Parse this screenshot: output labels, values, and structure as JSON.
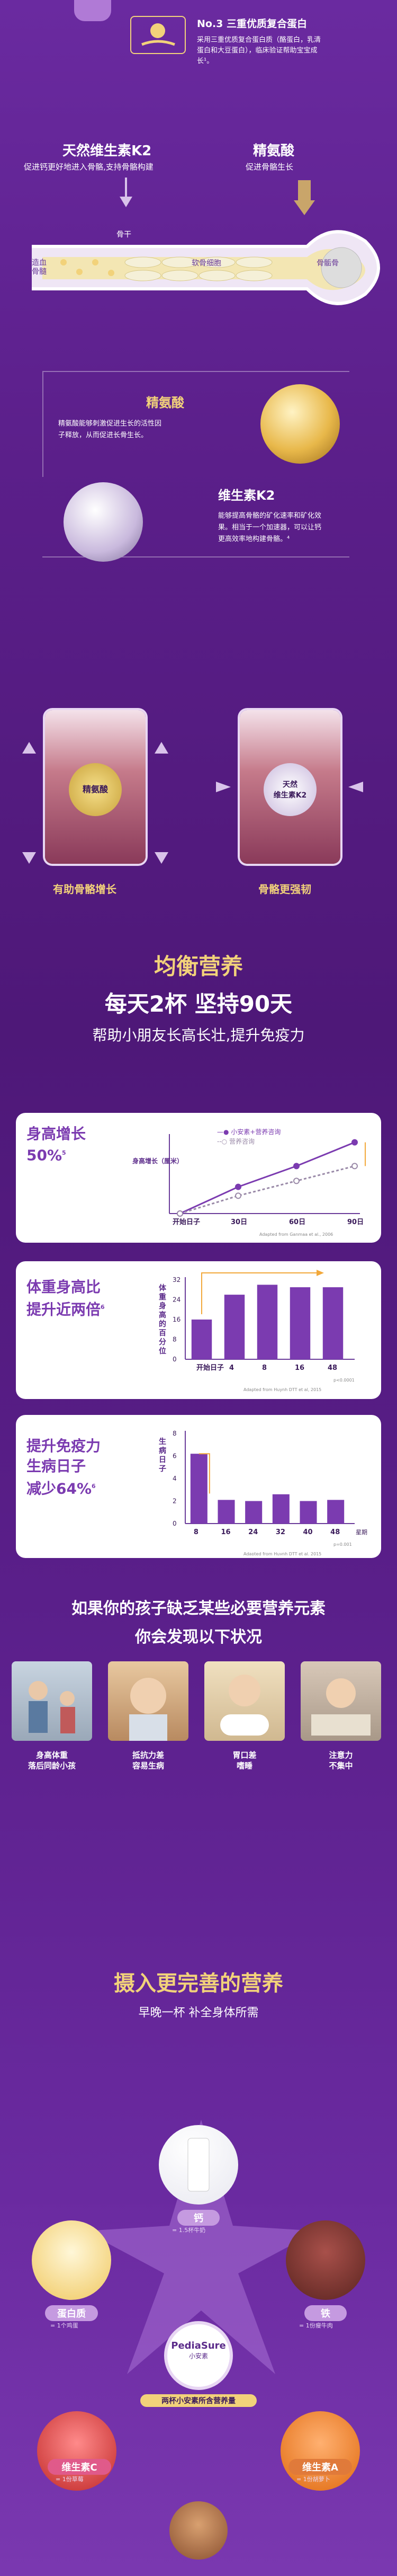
{
  "top": {
    "no3_title": "No.3 三重优质复合蛋白",
    "no3_desc_1": "采用三重优质复合蛋白质（酪蛋白，乳清",
    "no3_desc_2": "蛋白和大豆蛋白），临床验证帮助宝宝成",
    "no3_desc_3": "长¹。"
  },
  "bone": {
    "k2_title": "天然维生素K2",
    "k2_desc": "促进钙更好地进入骨骼,支持骨骼构建",
    "arg_title": "精氨酸",
    "arg_desc": "促进骨骼生长",
    "label_gugan": "骨干",
    "label_ruangu": "软骨细胞",
    "label_zaoxue": "造血\n骨髓",
    "label_guguo": "骨骺骨"
  },
  "arg_card": {
    "title": "精氨酸",
    "desc_1": "精氨酸能够刺激促进生长的活性因",
    "desc_2": "子释放，从而促进长骨生长。"
  },
  "k2_card": {
    "title": "维生素K2",
    "desc_1": "能够提高骨骼的矿化速率和矿化效",
    "desc_2": "果。相当于一个加速器，可以让钙",
    "desc_3": "更高效率地构建骨骼。⁴"
  },
  "twins": {
    "left_badge": "精氨酸",
    "right_badge_1": "天然",
    "right_badge_2": "维生素K2",
    "left_caption": "有助骨骼增长",
    "right_caption": "骨骼更强韧"
  },
  "headline": {
    "l1": "均衡营养",
    "l2": "每天2杯  坚持90天",
    "l3": "帮助小朋友长高长壮,提升免疫力"
  },
  "chart1": {
    "title_1": "身高增长",
    "title_2": "50%",
    "sup": "5",
    "ylabel": "身高增长（厘米）",
    "legend_a": "小安素+营养咨询",
    "legend_b": "营养咨询",
    "source": "Adapted from Ganmaa et al., 2006"
  },
  "chart2": {
    "title_1": "体重身高比",
    "title_2": "提升近两倍",
    "sup": "6",
    "ylabel": "体重身高的百分位",
    "source": "Adapted from Huynh DTT et al, 2015",
    "pval": "p<0.0001"
  },
  "chart3": {
    "title_1": "提升免疫力",
    "title_2": "生病日子",
    "title_3": "减少64%",
    "sup": "6",
    "ylabel": "生病日子",
    "source": "Adapted from Huynh DTT et al, 2015",
    "pval": "p=0.001"
  },
  "lack": {
    "title_1": "如果你的孩子缺乏某些必要营养元素",
    "title_2": "你会发现以下状况",
    "items": [
      {
        "l1": "身高体重",
        "l2": "落后同龄小孩"
      },
      {
        "l1": "抵抗力差",
        "l2": "容易生病"
      },
      {
        "l1": "胃口差",
        "l2": "嗜睡"
      },
      {
        "l1": "注意力",
        "l2": "不集中"
      }
    ]
  },
  "nutrition": {
    "title": "摄入更完善的营养",
    "sub": "早晚一杯 补全身体所需",
    "center_brand": "PediaSure",
    "center_brand_cn": "小安素",
    "center_text": "两杯小安素所含营养量",
    "items": [
      {
        "name": "钙",
        "sub": "= 1.5杯牛奶"
      },
      {
        "name": "蛋白质",
        "sub": "= 1个鸡蛋"
      },
      {
        "name": "铁",
        "sub": "= 1份瘦牛肉"
      },
      {
        "name": "维生素C",
        "sub": "= 1份草莓"
      },
      {
        "name": "维生素A",
        "sub": "= 1份胡萝卜"
      }
    ]
  },
  "colors": {
    "bg": "#5b1f8a",
    "gold": "#f2d27a",
    "purple": "#7b3bb0",
    "white": "#ffffff"
  },
  "chart_data": [
    {
      "type": "line",
      "title": "身高增长50%",
      "xlabel": "",
      "ylabel": "身高增长（厘米）",
      "x": [
        "开始日子",
        "30日",
        "60日",
        "90日"
      ],
      "series": [
        {
          "name": "小安素+营养咨询",
          "values": [
            0,
            0.9,
            1.6,
            2.4
          ]
        },
        {
          "name": "营养咨询",
          "values": [
            0,
            0.6,
            1.1,
            1.6
          ]
        }
      ],
      "ylim": [
        0,
        2.5
      ]
    },
    {
      "type": "bar",
      "title": "体重身高比提升近两倍",
      "ylabel": "体重身高的百分位",
      "categories": [
        "开始日子",
        "4",
        "8",
        "16",
        "48"
      ],
      "values": [
        16,
        26,
        30,
        29,
        29
      ],
      "ylim": [
        0,
        32
      ],
      "yticks": [
        0,
        8,
        16,
        24,
        32
      ]
    },
    {
      "type": "bar",
      "title": "提升免疫力生病日子减少64%",
      "ylabel": "生病日子",
      "categories": [
        "8",
        "16",
        "24",
        "32",
        "40",
        "48"
      ],
      "values": [
        6.2,
        2.1,
        2.0,
        2.6,
        2.0,
        2.1
      ],
      "ylim": [
        0,
        8
      ],
      "yticks": [
        0,
        2,
        4,
        6,
        8
      ],
      "xunit": "星期"
    }
  ]
}
